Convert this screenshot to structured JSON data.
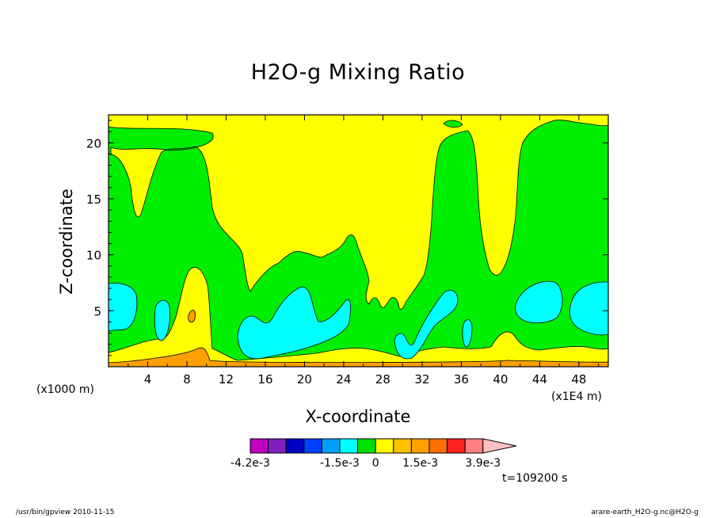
{
  "chart_data": {
    "type": "heatmap",
    "title": "H2O-g Mixing Ratio",
    "xlabel": "X-coordinate",
    "ylabel": "Z-coordinate",
    "x_multiplier_label": "(x1000 m)",
    "x_unit_label": "(x1E4 m)",
    "x_ticks": [
      "4",
      "8",
      "12",
      "16",
      "20",
      "24",
      "28",
      "32",
      "36",
      "40",
      "44",
      "48"
    ],
    "y_ticks": [
      "5",
      "10",
      "15",
      "20"
    ],
    "xlim": [
      0,
      51
    ],
    "ylim": [
      0,
      22.5
    ],
    "colorbar": {
      "levels": [
        "-4.2e-3",
        "-3.9e-3",
        "-3.3e-3",
        "-2.7e-3",
        "-2.1e-3",
        "-1.5e-3",
        "-0.9e-3",
        "-0.3e-3",
        "0.3e-3",
        "0.9e-3",
        "1.5e-3",
        "2.1e-3",
        "2.7e-3",
        "3.3e-3",
        "3.9e-3"
      ],
      "labels": [
        "-4.2e-3",
        "-1.5e-3",
        "0",
        "1.5e-3",
        "3.9e-3"
      ],
      "colors": [
        "#c000c0",
        "#8020c0",
        "#0000c0",
        "#0040ff",
        "#00a0ff",
        "#00ffff",
        "#00e000",
        "#ffff00",
        "#ffc000",
        "#ffa000",
        "#ff7000",
        "#ff2020",
        "#ff8080",
        "#ffc0c0"
      ]
    },
    "fields": {
      "background": "#ffff00",
      "green_regions": "#00ee00",
      "cyan_regions": "#00ffff",
      "orange_regions": "#ffa000"
    }
  },
  "time_label": "t=109200 s",
  "footer_left": "/usr/bin/gpview   2010-11-15",
  "footer_right": "arare-earth_H2O-g.nc@H2O-g"
}
